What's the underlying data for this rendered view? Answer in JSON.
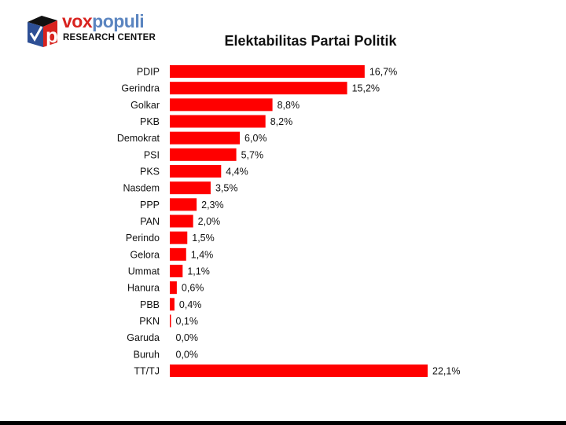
{
  "logo": {
    "brand_part1": "vox",
    "brand_part2": "populi",
    "subtitle": "RESEARCH CENTER"
  },
  "chart_data": {
    "type": "bar",
    "orientation": "horizontal",
    "title": "Elektabilitas Partai Politik",
    "categories": [
      "PDIP",
      "Gerindra",
      "Golkar",
      "PKB",
      "Demokrat",
      "PSI",
      "PKS",
      "Nasdem",
      "PPP",
      "PAN",
      "Perindo",
      "Gelora",
      "Ummat",
      "Hanura",
      "PBB",
      "PKN",
      "Garuda",
      "Buruh",
      "TT/TJ"
    ],
    "values": [
      16.7,
      15.2,
      8.8,
      8.2,
      6.0,
      5.7,
      4.4,
      3.5,
      2.3,
      2.0,
      1.5,
      1.4,
      1.1,
      0.6,
      0.4,
      0.1,
      0.0,
      0.0,
      22.1
    ],
    "data_labels": [
      "16,7%",
      "15,2%",
      "8,8%",
      "8,2%",
      "6,0%",
      "5,7%",
      "4,4%",
      "3,5%",
      "2,3%",
      "2,0%",
      "1,5%",
      "1,4%",
      "1,1%",
      "0,6%",
      "0,4%",
      "0,1%",
      "0,0%",
      "0,0%",
      "22,1%"
    ],
    "unit": "%",
    "xlim": [
      0,
      22.1
    ],
    "grid": false,
    "legend": "none",
    "bar_color": "#ff0000"
  }
}
